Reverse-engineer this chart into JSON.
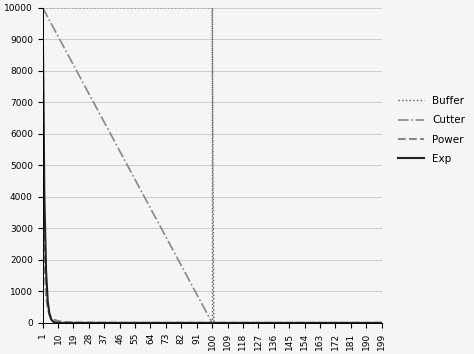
{
  "x_start": 1,
  "x_end": 199,
  "buffer_cutoff": 100,
  "buffer_value": 10000,
  "ylim": [
    0,
    10000
  ],
  "yticks": [
    0,
    1000,
    2000,
    3000,
    4000,
    5000,
    6000,
    7000,
    8000,
    9000,
    10000
  ],
  "xticks": [
    1,
    10,
    19,
    28,
    37,
    46,
    55,
    64,
    73,
    82,
    91,
    100,
    109,
    118,
    127,
    136,
    145,
    154,
    163,
    172,
    181,
    190,
    199
  ],
  "legend_labels": [
    "Buffer",
    "Cutter",
    "Power",
    "Exp"
  ],
  "buffer_color": "#555555",
  "cutter_color": "#888888",
  "power_color": "#888888",
  "exp_color": "#222222",
  "vline_color": "#555555",
  "background_color": "#f5f5f5",
  "grid_color": "#cccccc"
}
